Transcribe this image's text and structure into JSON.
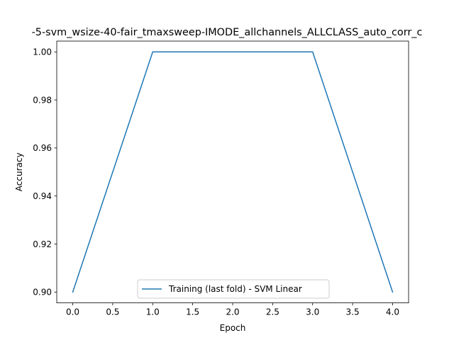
{
  "chart_data": {
    "type": "line",
    "title": "-5-svm_wsize-40-fair_tmaxsweep-IMODE_allchannels_ALLCLASS_auto_corr_c",
    "xlabel": "Epoch",
    "ylabel": "Accuracy",
    "xlim": [
      -0.2,
      4.2
    ],
    "ylim": [
      0.8955,
      1.0045
    ],
    "x_ticks": [
      "0.0",
      "0.5",
      "1.0",
      "1.5",
      "2.0",
      "2.5",
      "3.0",
      "3.5",
      "4.0"
    ],
    "y_ticks": [
      "0.90",
      "0.92",
      "0.94",
      "0.96",
      "0.98",
      "1.00"
    ],
    "grid": false,
    "legend_position": "lower center",
    "series": [
      {
        "name": "Training (last fold) - SVM Linear",
        "color": "#1f77b4",
        "x": [
          0,
          1,
          2,
          3,
          4
        ],
        "y": [
          0.9,
          1.0,
          1.0,
          1.0,
          0.9
        ]
      }
    ]
  }
}
